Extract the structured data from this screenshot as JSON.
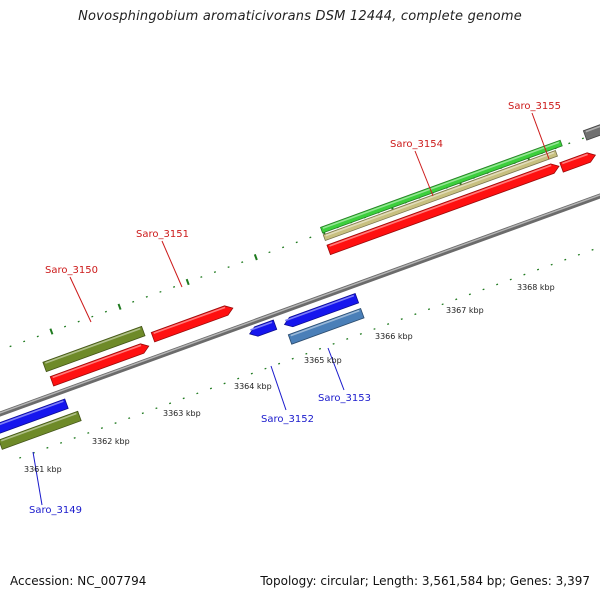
{
  "title": "Novosphingobium aromaticivorans DSM 12444, complete genome",
  "footer": {
    "accession": "Accession: NC_007794",
    "topology": "Topology: circular; Length: 3,561,584 bp; Genes: 3,397"
  },
  "scale_labels": [
    "3361 kbp",
    "3362 kbp",
    "3363 kbp",
    "3364 kbp",
    "3365 kbp",
    "3366 kbp",
    "3367 kbp",
    "3368 kbp"
  ],
  "gene_labels": [
    {
      "name": "Saro_3149",
      "color": "#1a1acc"
    },
    {
      "name": "Saro_3150",
      "color": "#cc1a1a"
    },
    {
      "name": "Saro_3151",
      "color": "#cc1a1a"
    },
    {
      "name": "Saro_3152",
      "color": "#1a1acc"
    },
    {
      "name": "Saro_3153",
      "color": "#1a1acc"
    },
    {
      "name": "Saro_3154",
      "color": "#cc1a1a"
    },
    {
      "name": "Saro_3155",
      "color": "#cc1a1a"
    }
  ],
  "colors": {
    "backbone": "#8a8a8a",
    "forward_gene": "#ff1010",
    "reverse_gene": "#1616ee",
    "olive_feature": "#6e8a28",
    "green_feature": "#3ccf3c",
    "khaki_feature": "#c8c080",
    "steel_feature": "#4a7fb8",
    "gray_feature": "#707070",
    "tick": "#1f7a1f"
  }
}
